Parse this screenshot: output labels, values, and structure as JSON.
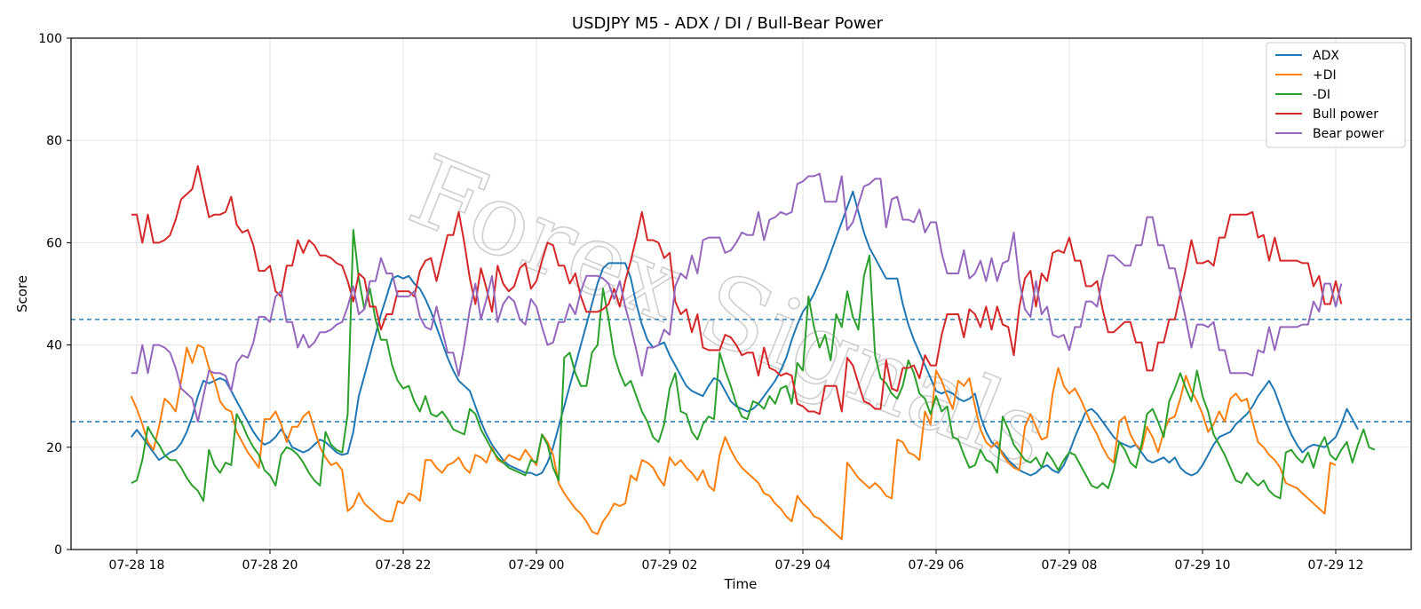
{
  "chart_data": {
    "type": "line",
    "title": "USDJPY M5 - ADX / DI / Bull-Bear Power",
    "xlabel": "Time",
    "ylabel": "Score",
    "ylim": [
      0,
      100
    ],
    "yticks": [
      0,
      20,
      40,
      60,
      80,
      100
    ],
    "xticks": [
      "07-28 18",
      "07-28 20",
      "07-28 22",
      "07-29 00",
      "07-29 02",
      "07-29 04",
      "07-29 06",
      "07-29 08",
      "07-29 10",
      "07-29 12"
    ],
    "x_range": [
      "07-28 17:55",
      "07-29 12:10"
    ],
    "x_step_minutes": 5,
    "thresholds": [
      45,
      25
    ],
    "grid": true,
    "legend_position": "top-right",
    "watermark": "Forex Signals",
    "series": [
      {
        "name": "ADX",
        "color": "#1f77b4",
        "values": [
          22.0,
          23.4,
          22.0,
          20.5,
          19.0,
          17.5,
          18.2,
          19.0,
          19.5,
          20.8,
          23.0,
          26.0,
          30.0,
          33.0,
          32.5,
          33.0,
          33.5,
          33.0,
          31.0,
          29.0,
          27.0,
          25.0,
          23.0,
          21.5,
          20.5,
          21.0,
          22.0,
          23.5,
          22.0,
          20.0,
          19.5,
          19.0,
          19.5,
          20.5,
          21.5,
          21.0,
          20.0,
          19.0,
          18.5,
          18.8,
          23.0,
          30.0,
          34.0,
          38.0,
          42.0,
          46.0,
          49.5,
          53.0,
          53.5,
          53.0,
          53.5,
          52.0,
          51.0,
          49.0,
          46.5,
          43.5,
          40.5,
          37.5,
          35.0,
          33.0,
          32.0,
          31.0,
          28.0,
          25.0,
          22.5,
          20.5,
          19.0,
          17.5,
          16.5,
          16.0,
          15.5,
          15.0,
          15.0,
          14.5,
          15.0,
          17.0,
          20.0,
          24.0,
          28.0,
          32.0,
          36.0,
          40.0,
          44.0,
          48.0,
          52.0,
          55.0,
          56.0,
          56.0,
          56.0,
          56.0,
          53.0,
          48.0,
          44.0,
          41.0,
          39.5,
          40.0,
          40.5,
          38.0,
          36.0,
          34.0,
          32.0,
          31.0,
          30.5,
          30.0,
          32.0,
          33.5,
          33.0,
          31.0,
          29.0,
          28.0,
          27.5,
          27.0,
          27.5,
          28.5,
          30.0,
          31.5,
          33.0,
          35.0,
          37.5,
          41.0,
          44.0,
          46.5,
          48.0,
          50.0,
          52.5,
          55.0,
          58.0,
          61.0,
          64.0,
          67.0,
          70.0,
          66.0,
          62.0,
          59.0,
          57.0,
          55.0,
          53.0,
          53.0,
          53.0,
          48.0,
          44.0,
          41.0,
          38.5,
          36.0,
          33.5,
          31.0,
          30.5,
          31.0,
          30.5,
          29.5,
          29.0,
          29.5,
          30.5,
          26.0,
          23.0,
          21.0,
          20.0,
          19.0,
          17.5,
          16.5,
          15.5,
          15.0,
          14.5,
          15.0,
          16.0,
          16.5,
          15.5,
          15.0,
          16.5,
          19.0,
          22.0,
          24.5,
          27.0,
          27.5,
          26.5,
          25.0,
          23.5,
          22.0,
          21.0,
          20.5,
          20.0,
          20.5,
          19.0,
          17.5,
          17.0,
          17.5,
          18.0,
          17.0,
          18.0,
          16.0,
          15.0,
          14.5,
          15.0,
          16.5,
          18.5,
          20.5,
          22.0,
          22.5,
          23.0,
          24.5,
          25.5,
          26.5,
          28.0,
          30.0,
          31.5,
          33.0,
          31.0,
          28.0,
          25.0,
          22.5,
          20.5,
          19.0,
          20.0,
          20.5,
          20.3,
          20.0,
          21.0,
          22.0,
          24.5,
          27.5,
          25.5,
          23.5
        ]
      },
      {
        "name": "+DI",
        "color": "#ff7f0e",
        "values": [
          30.0,
          27.5,
          24.5,
          21.0,
          19.5,
          24.0,
          29.5,
          28.5,
          27.0,
          33.0,
          39.5,
          36.5,
          40.0,
          39.5,
          35.5,
          33.0,
          29.0,
          27.5,
          27.0,
          23.0,
          21.0,
          19.0,
          17.5,
          16.0,
          25.5,
          25.5,
          27.0,
          24.5,
          21.0,
          24.0,
          24.0,
          26.0,
          27.0,
          23.5,
          20.0,
          18.0,
          16.5,
          17.0,
          15.5,
          7.5,
          8.5,
          11.0,
          9.0,
          8.0,
          7.0,
          6.0,
          5.5,
          5.5,
          9.5,
          9.0,
          11.0,
          10.5,
          9.5,
          17.5,
          17.5,
          16.0,
          15.0,
          16.5,
          17.0,
          18.0,
          16.0,
          15.0,
          18.5,
          18.0,
          17.0,
          20.0,
          17.5,
          17.0,
          18.5,
          18.0,
          17.5,
          19.5,
          18.0,
          16.5,
          22.5,
          21.0,
          18.5,
          13.0,
          11.0,
          9.5,
          8.0,
          7.0,
          5.5,
          3.5,
          3.0,
          5.5,
          7.0,
          9.0,
          8.5,
          9.0,
          14.5,
          13.5,
          17.5,
          17.0,
          16.0,
          14.0,
          12.5,
          18.0,
          16.5,
          17.5,
          16.0,
          15.0,
          13.5,
          15.5,
          12.5,
          11.5,
          18.5,
          22.0,
          19.5,
          17.5,
          16.0,
          15.0,
          14.0,
          13.0,
          11.0,
          10.5,
          9.0,
          8.0,
          6.5,
          5.5,
          10.5,
          9.0,
          8.0,
          6.5,
          6.0,
          5.0,
          4.0,
          3.0,
          2.0,
          17.0,
          15.5,
          14.0,
          13.0,
          12.0,
          13.0,
          12.0,
          10.5,
          10.0,
          21.5,
          21.0,
          19.0,
          18.5,
          17.5,
          27.0,
          24.5,
          35.0,
          33.0,
          30.0,
          27.5,
          33.0,
          32.0,
          33.5,
          28.0,
          23.5,
          21.0,
          20.0,
          21.0,
          18.5,
          17.0,
          16.0,
          15.5,
          24.0,
          26.5,
          24.0,
          21.5,
          22.0,
          30.5,
          35.5,
          32.0,
          30.5,
          31.5,
          29.5,
          27.0,
          24.5,
          22.5,
          20.0,
          18.0,
          17.0,
          25.0,
          26.0,
          22.5,
          20.5,
          19.5,
          24.0,
          22.0,
          19.0,
          23.0,
          25.5,
          26.0,
          29.5,
          34.0,
          31.0,
          29.0,
          26.5,
          23.0,
          24.5,
          27.0,
          25.0,
          29.5,
          30.5,
          29.0,
          29.5,
          25.0,
          21.0,
          20.0,
          18.5,
          17.5,
          16.0,
          13.0,
          12.5,
          12.0,
          11.0,
          10.0,
          9.0,
          8.0,
          7.0,
          17.0,
          16.5
        ]
      },
      {
        "name": "-DI",
        "color": "#2ca02c",
        "values": [
          13.0,
          13.5,
          17.5,
          24.0,
          22.0,
          20.5,
          18.5,
          17.5,
          17.5,
          16.0,
          14.0,
          12.5,
          11.5,
          9.5,
          19.5,
          16.5,
          15.0,
          17.0,
          16.5,
          26.5,
          24.5,
          22.0,
          20.0,
          18.5,
          15.5,
          14.5,
          12.5,
          18.5,
          20.0,
          19.5,
          18.5,
          17.0,
          15.0,
          13.5,
          12.5,
          23.0,
          20.5,
          19.5,
          19.0,
          26.5,
          62.5,
          53.0,
          47.0,
          51.0,
          45.0,
          41.0,
          41.0,
          36.0,
          33.0,
          31.5,
          32.0,
          29.0,
          27.0,
          30.0,
          26.5,
          26.0,
          27.0,
          25.5,
          23.5,
          23.0,
          22.5,
          27.5,
          26.5,
          23.5,
          21.5,
          19.5,
          18.0,
          17.0,
          16.0,
          15.5,
          15.0,
          14.5,
          17.5,
          17.0,
          22.5,
          20.5,
          16.0,
          13.5,
          37.5,
          38.5,
          34.5,
          32.0,
          32.0,
          38.5,
          40.0,
          51.0,
          45.0,
          38.0,
          34.5,
          32.0,
          33.0,
          30.0,
          27.0,
          25.0,
          22.0,
          21.0,
          24.5,
          31.5,
          34.5,
          27.0,
          26.5,
          23.0,
          21.5,
          24.5,
          26.0,
          25.5,
          38.5,
          35.0,
          32.0,
          28.5,
          26.0,
          25.5,
          29.0,
          28.5,
          27.5,
          30.0,
          28.5,
          31.5,
          32.0,
          28.5,
          36.5,
          35.0,
          49.5,
          43.5,
          39.5,
          42.0,
          37.0,
          46.0,
          43.5,
          50.5,
          45.5,
          43.0,
          53.5,
          57.5,
          38.0,
          33.5,
          32.5,
          30.5,
          29.5,
          32.0,
          37.0,
          34.5,
          30.5,
          29.5,
          26.5,
          30.0,
          27.0,
          28.0,
          22.0,
          21.5,
          18.5,
          16.0,
          16.5,
          19.5,
          17.5,
          17.0,
          15.0,
          26.0,
          23.5,
          20.5,
          19.0,
          17.5,
          17.0,
          18.0,
          16.0,
          19.0,
          17.5,
          15.5,
          17.5,
          19.0,
          18.5,
          16.5,
          14.5,
          12.5,
          12.0,
          13.0,
          12.0,
          15.5,
          21.0,
          19.5,
          17.0,
          16.0,
          20.5,
          26.5,
          27.5,
          25.0,
          22.0,
          29.0,
          31.5,
          34.5,
          31.5,
          29.0,
          35.0,
          30.0,
          27.0,
          22.5,
          20.5,
          18.5,
          16.0,
          13.5,
          13.0,
          15.0,
          13.5,
          12.5,
          13.5,
          11.5,
          10.5,
          10.0,
          19.0,
          19.5,
          18.0,
          17.0,
          19.0,
          16.0,
          20.0,
          22.0,
          18.5,
          17.5,
          19.5,
          21.0,
          17.0,
          20.5,
          23.5,
          20.0,
          19.5
        ]
      },
      {
        "name": "Bull power",
        "color": "#d62728",
        "values": [
          65.5,
          65.5,
          60.0,
          65.5,
          60.0,
          60.0,
          60.5,
          61.5,
          64.5,
          68.5,
          69.5,
          70.5,
          75.0,
          70.0,
          65.0,
          65.5,
          65.5,
          66.0,
          69.0,
          63.5,
          62.0,
          62.5,
          59.5,
          54.5,
          54.5,
          55.5,
          50.5,
          49.5,
          55.5,
          55.5,
          60.5,
          58.0,
          60.5,
          59.5,
          57.5,
          57.5,
          57.0,
          56.0,
          55.5,
          52.5,
          48.5,
          54.0,
          53.0,
          47.5,
          47.5,
          43.0,
          46.0,
          46.0,
          50.5,
          50.5,
          50.5,
          49.5,
          54.5,
          56.5,
          57.0,
          52.5,
          57.0,
          61.5,
          61.5,
          66.0,
          60.0,
          53.0,
          48.0,
          55.0,
          51.0,
          46.5,
          55.5,
          52.0,
          50.5,
          51.5,
          55.0,
          56.0,
          51.0,
          52.5,
          56.5,
          60.0,
          59.5,
          55.5,
          55.5,
          52.0,
          54.0,
          49.5,
          46.5,
          46.5,
          46.5,
          47.0,
          48.0,
          51.0,
          47.5,
          52.5,
          56.5,
          61.0,
          66.0,
          60.5,
          60.5,
          60.0,
          57.0,
          58.0,
          48.5,
          46.0,
          47.0,
          42.5,
          46.0,
          39.5,
          39.0,
          39.0,
          39.0,
          42.0,
          41.5,
          40.0,
          38.0,
          38.5,
          38.5,
          34.0,
          39.5,
          35.5,
          35.0,
          34.0,
          34.5,
          34.0,
          28.5,
          28.0,
          27.0,
          27.0,
          26.5,
          32.0,
          32.0,
          32.0,
          27.0,
          37.5,
          36.0,
          32.5,
          29.0,
          28.5,
          27.5,
          27.5,
          37.0,
          31.5,
          31.0,
          35.5,
          35.5,
          36.0,
          33.5,
          38.0,
          36.0,
          36.0,
          42.0,
          46.0,
          46.0,
          46.0,
          41.5,
          47.0,
          46.0,
          43.5,
          47.5,
          43.0,
          47.5,
          44.0,
          43.5,
          38.0,
          47.5,
          53.0,
          54.5,
          47.5,
          54.0,
          52.5,
          58.0,
          58.5,
          58.0,
          61.0,
          56.5,
          56.5,
          51.5,
          51.5,
          52.5,
          47.0,
          42.5,
          42.5,
          43.5,
          44.5,
          44.5,
          40.5,
          40.5,
          35.0,
          35.0,
          40.5,
          40.5,
          45.0,
          45.0,
          50.0,
          55.0,
          60.5,
          56.0,
          56.0,
          56.5,
          55.5,
          61.0,
          61.0,
          65.5,
          65.5,
          65.5,
          65.5,
          66.0,
          61.0,
          61.5,
          56.5,
          61.0,
          56.5,
          56.5,
          56.5,
          56.5,
          56.0,
          56.0,
          51.5,
          53.5,
          48.0,
          48.0,
          52.5,
          48.0
        ]
      },
      {
        "name": "Bear power",
        "color": "#9467bd",
        "values": [
          34.5,
          34.5,
          40.0,
          34.5,
          40.0,
          40.0,
          39.5,
          38.5,
          35.5,
          31.5,
          30.5,
          29.5,
          25.0,
          30.0,
          35.0,
          34.5,
          34.5,
          34.0,
          31.0,
          36.5,
          38.0,
          37.5,
          40.5,
          45.5,
          45.5,
          44.5,
          49.5,
          50.5,
          44.5,
          44.5,
          39.5,
          42.0,
          39.5,
          40.5,
          42.5,
          42.5,
          43.0,
          44.0,
          44.5,
          47.5,
          51.5,
          46.0,
          47.0,
          52.5,
          52.5,
          57.0,
          54.0,
          54.0,
          49.5,
          49.5,
          49.5,
          50.5,
          45.5,
          43.5,
          43.0,
          47.5,
          43.0,
          38.5,
          38.5,
          34.0,
          40.0,
          47.0,
          52.0,
          45.0,
          49.0,
          53.5,
          44.5,
          48.0,
          49.5,
          48.5,
          45.0,
          44.0,
          49.0,
          47.5,
          43.5,
          40.0,
          40.5,
          44.5,
          44.5,
          48.0,
          46.0,
          50.5,
          53.5,
          53.5,
          53.5,
          53.0,
          52.0,
          49.0,
          52.5,
          47.5,
          43.5,
          39.0,
          34.0,
          39.5,
          39.5,
          40.0,
          43.0,
          42.0,
          51.5,
          54.0,
          53.0,
          57.5,
          54.0,
          60.5,
          61.0,
          61.0,
          61.0,
          58.0,
          58.5,
          60.0,
          62.0,
          61.5,
          61.5,
          66.0,
          60.5,
          64.5,
          65.0,
          66.0,
          65.5,
          66.0,
          71.5,
          72.0,
          73.0,
          73.0,
          73.5,
          68.0,
          68.0,
          68.0,
          73.0,
          62.5,
          64.0,
          67.5,
          71.0,
          71.5,
          72.5,
          72.5,
          63.0,
          68.5,
          69.0,
          64.5,
          64.5,
          64.0,
          66.5,
          62.0,
          64.0,
          64.0,
          58.0,
          54.0,
          54.0,
          54.0,
          58.5,
          53.0,
          54.0,
          56.5,
          52.5,
          57.0,
          52.5,
          56.0,
          56.5,
          62.0,
          52.5,
          47.0,
          45.5,
          52.5,
          46.0,
          47.5,
          42.0,
          41.5,
          42.0,
          39.0,
          43.5,
          43.5,
          48.5,
          48.5,
          47.5,
          53.0,
          57.5,
          57.5,
          56.5,
          55.5,
          55.5,
          59.5,
          59.5,
          65.0,
          65.0,
          59.5,
          59.5,
          55.0,
          55.0,
          50.0,
          45.0,
          39.5,
          44.0,
          44.0,
          43.5,
          44.5,
          39.0,
          39.0,
          34.5,
          34.5,
          34.5,
          34.5,
          34.0,
          39.0,
          38.5,
          43.5,
          39.0,
          43.5,
          43.5,
          43.5,
          43.5,
          44.0,
          44.0,
          48.5,
          46.5,
          52.0,
          52.0,
          47.5,
          52.0
        ]
      }
    ]
  }
}
